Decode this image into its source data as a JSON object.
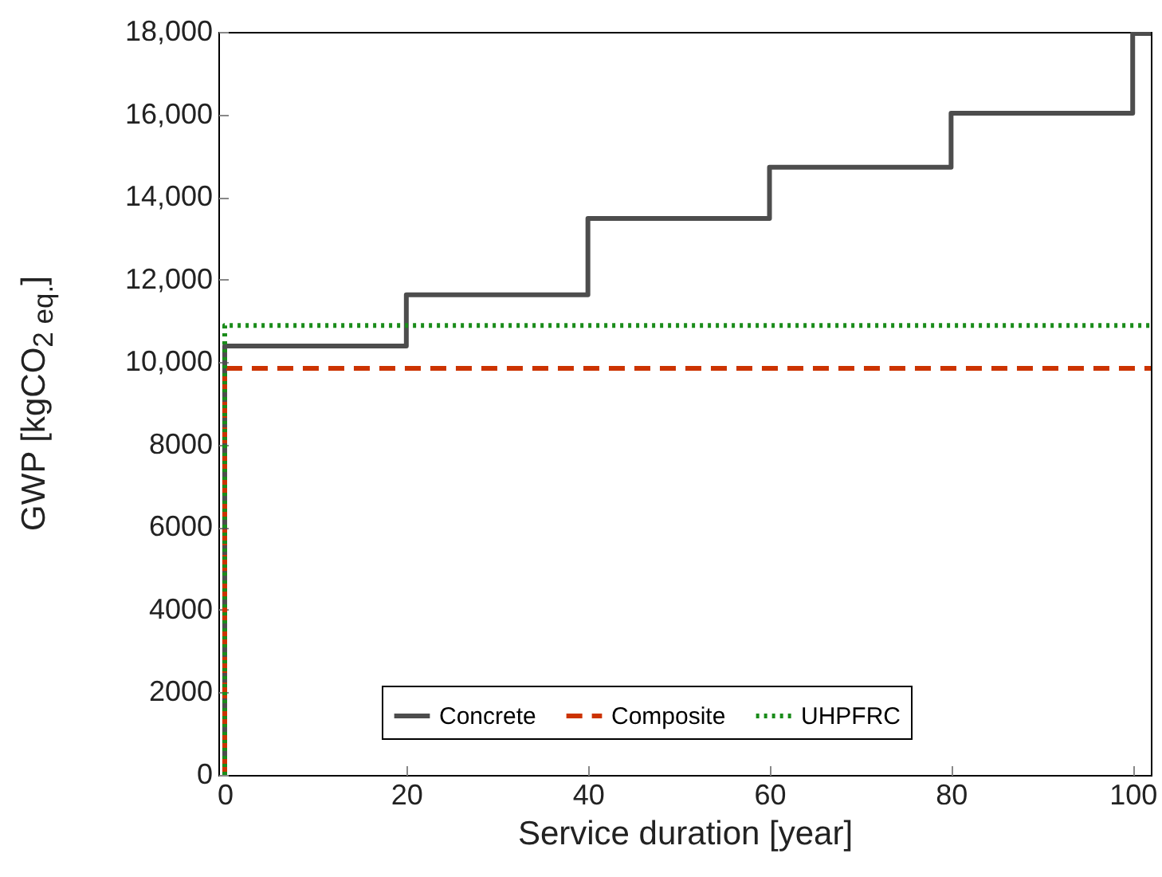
{
  "chart_data": {
    "type": "step",
    "xlabel": "Service duration [year]",
    "ylabel": "GWP [kgCO$_{2 eq.}$]",
    "xlim": [
      -0.7,
      102
    ],
    "xticks": [
      0,
      20,
      40,
      60,
      80,
      100
    ],
    "ylim": [
      0,
      18000
    ],
    "yticks": [
      0,
      2000,
      4000,
      6000,
      8000,
      {
        "value": 10000,
        "label": "10,000"
      },
      {
        "value": 12000,
        "label": "12,000"
      },
      {
        "value": 14000,
        "label": "14,000"
      },
      {
        "value": 16000,
        "label": "16,000"
      },
      {
        "value": 18000,
        "label": "18,000"
      }
    ],
    "grid": false,
    "legend": "bottom",
    "marker": "none",
    "series": [
      {
        "name": "Concrete",
        "color": "#4d4d4d",
        "line_style": "solid",
        "x": [
          0,
          0,
          20,
          40,
          60,
          80,
          100,
          102
        ],
        "values": [
          0,
          10390,
          11630,
          13480,
          14720,
          16030,
          17960,
          17960
        ]
      },
      {
        "name": "Composite",
        "color": "#cc3300",
        "line_style": "dashed",
        "x": [
          0,
          0,
          102
        ],
        "values": [
          0,
          9850,
          9850
        ]
      },
      {
        "name": "UHPFRC",
        "color": "#1a8c1a",
        "line_style": "dotted",
        "x": [
          0,
          0,
          102
        ],
        "values": [
          0,
          10890,
          10890
        ]
      }
    ]
  }
}
